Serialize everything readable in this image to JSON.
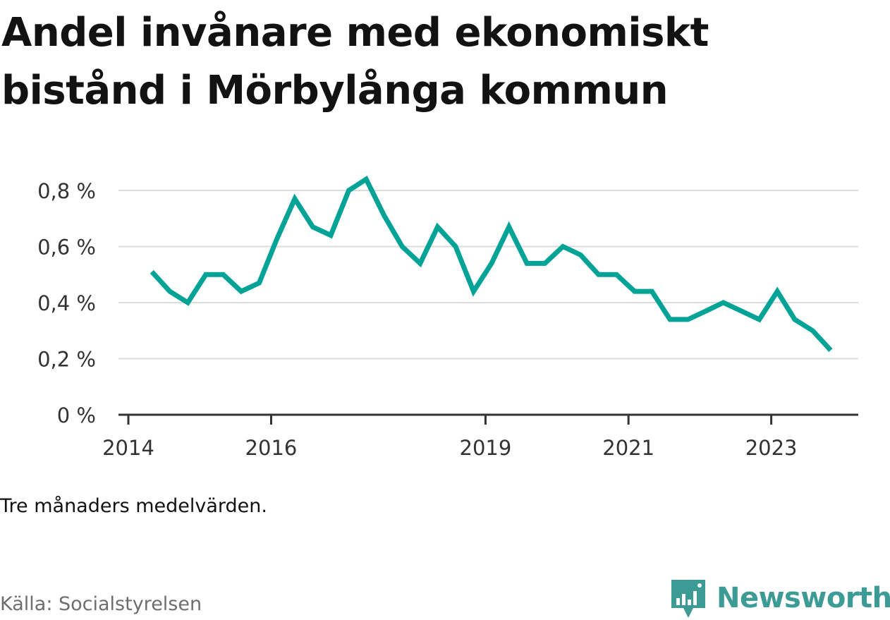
{
  "title": "Andel invånare med ekonomiskt bistånd i Mörbylånga kommun",
  "note": "Tre månaders medelvärden.",
  "source": "Källa: Socialstyrelsen",
  "brand": {
    "name": "Newsworthy",
    "color": "#3d9b96"
  },
  "chart_data": {
    "type": "line",
    "title": "Andel invånare med ekonomiskt bistånd i Mörbylånga kommun",
    "xlabel": "",
    "ylabel": "",
    "x_ticks": [
      "2014",
      "2016",
      "2019",
      "2021",
      "2023"
    ],
    "y_ticks": [
      "0 %",
      "0,2 %",
      "0,4 %",
      "0,6 %",
      "0,8 %"
    ],
    "ylim": [
      0,
      0.8
    ],
    "y_tick_values": [
      0,
      0.2,
      0.4,
      0.6,
      0.8
    ],
    "grid": true,
    "line_color": "#00a396",
    "series": [
      {
        "x": [
          "2014-05",
          "2014-08",
          "2014-11",
          "2015-02",
          "2015-05",
          "2015-08",
          "2015-11",
          "2016-02",
          "2016-05",
          "2016-08",
          "2016-11",
          "2017-02",
          "2017-05",
          "2017-08",
          "2017-11",
          "2018-02",
          "2018-05",
          "2018-08",
          "2018-11",
          "2019-02",
          "2019-05",
          "2019-08",
          "2019-11",
          "2020-02",
          "2020-05",
          "2020-08",
          "2020-11",
          "2021-02",
          "2021-05",
          "2021-08",
          "2021-11",
          "2022-02",
          "2022-05",
          "2022-08",
          "2022-11",
          "2023-02",
          "2023-05",
          "2023-08",
          "2023-11"
        ],
        "values": [
          0.51,
          0.44,
          0.4,
          0.5,
          0.5,
          0.44,
          0.47,
          0.63,
          0.77,
          0.67,
          0.64,
          0.8,
          0.84,
          0.71,
          0.6,
          0.54,
          0.67,
          0.6,
          0.44,
          0.54,
          0.67,
          0.54,
          0.54,
          0.6,
          0.57,
          0.5,
          0.5,
          0.44,
          0.44,
          0.34,
          0.34,
          0.37,
          0.4,
          0.37,
          0.34,
          0.44,
          0.34,
          0.3,
          0.23
        ]
      }
    ]
  }
}
